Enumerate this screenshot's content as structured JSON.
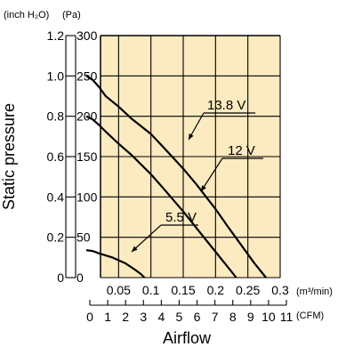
{
  "chart_data": {
    "type": "line",
    "title": "",
    "ylabel": "Static pressure",
    "xlabel": "Airflow",
    "unit_pressure_inch": "(inch H₂O)",
    "unit_pressure_pa": "(Pa)",
    "unit_flow_m3": "(m³/min)",
    "unit_flow_cfm": "(CFM)",
    "background_color": "#FCEBC0",
    "grid": true,
    "x_m3_ticks": [
      "0.05",
      "0.1",
      "0.15",
      "0.2",
      "0.25",
      "0.3"
    ],
    "x_m3_lim": [
      0,
      0.3
    ],
    "x_cfm_ticks": [
      "0",
      "1",
      "2",
      "3",
      "4",
      "5",
      "6",
      "7",
      "8",
      "9",
      "10",
      "11"
    ],
    "x_cfm_lim": [
      0,
      11
    ],
    "y_pa_ticks": [
      "0",
      "50",
      "100",
      "150",
      "200",
      "250",
      "300"
    ],
    "y_pa_lim": [
      0,
      300
    ],
    "y_inch_ticks": [
      "0",
      "0.2",
      "0.4",
      "0.6",
      "0.8",
      "1.0",
      "1.2"
    ],
    "series": [
      {
        "name": "13.8 V",
        "points": [
          [
            0,
            250
          ],
          [
            0.01,
            245
          ],
          [
            0.02,
            236
          ],
          [
            0.03,
            225
          ],
          [
            0.05,
            212
          ],
          [
            0.07,
            197
          ],
          [
            0.1,
            178
          ],
          [
            0.12,
            161
          ],
          [
            0.15,
            135
          ],
          [
            0.17,
            116
          ],
          [
            0.2,
            85
          ],
          [
            0.22,
            62
          ],
          [
            0.24,
            40
          ],
          [
            0.26,
            18
          ],
          [
            0.278,
            0
          ]
        ]
      },
      {
        "name": "12 V",
        "points": [
          [
            0,
            200
          ],
          [
            0.01,
            196
          ],
          [
            0.02,
            189
          ],
          [
            0.03,
            181
          ],
          [
            0.05,
            166
          ],
          [
            0.07,
            152
          ],
          [
            0.1,
            128
          ],
          [
            0.12,
            110
          ],
          [
            0.15,
            82
          ],
          [
            0.17,
            62
          ],
          [
            0.2,
            32
          ],
          [
            0.22,
            12
          ],
          [
            0.232,
            0
          ]
        ]
      },
      {
        "name": "5.5 V",
        "points": [
          [
            0,
            34
          ],
          [
            0.01,
            33
          ],
          [
            0.02,
            30
          ],
          [
            0.04,
            25
          ],
          [
            0.06,
            18
          ],
          [
            0.075,
            10
          ],
          [
            0.085,
            4
          ],
          [
            0.09,
            0
          ]
        ]
      }
    ]
  }
}
